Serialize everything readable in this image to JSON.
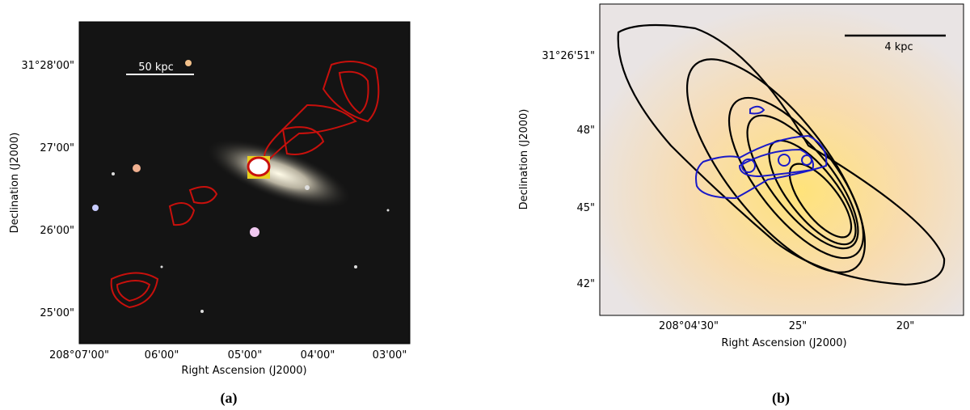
{
  "panels": [
    {
      "caption": "(a)",
      "x_label": "Right Ascension (J2000)",
      "y_label": "Declination (J2000)",
      "x_ticks": [
        "208°07'00\"",
        "06'00\"",
        "05'00\"",
        "04'00\"",
        "03'00\""
      ],
      "y_ticks": [
        "31°28'00\"",
        "27'00\"",
        "26'00\"",
        "25'00\""
      ],
      "scale_bar": "50 kpc"
    },
    {
      "caption": "(b)",
      "x_label": "Right Ascension (J2000)",
      "y_label": "Declination (J2000)",
      "x_ticks": [
        "208°04'30\"",
        "25\"",
        "20\""
      ],
      "y_ticks": [
        "31°26'51\"",
        "48\"",
        "45\"",
        "42\""
      ],
      "scale_bar": "4 kpc"
    }
  ]
}
